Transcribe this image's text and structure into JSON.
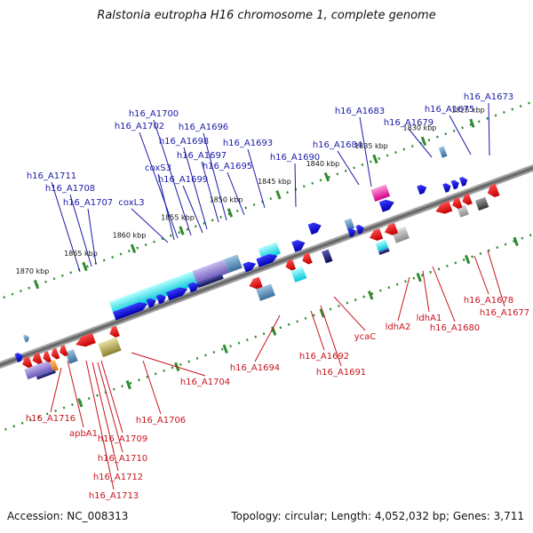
{
  "title": "Ralstonia eutropha H16 chromosome 1, complete genome",
  "footer": {
    "accession": "Accession: NC_008313",
    "topology": "Topology: circular; Length: 4,052,032 bp; Genes: 3,711"
  },
  "ticks": [
    {
      "label": "1825 kbp",
      "kbp": 1825
    },
    {
      "label": "1830 kbp",
      "kbp": 1830
    },
    {
      "label": "1835 kbp",
      "kbp": 1835
    },
    {
      "label": "1840 kbp",
      "kbp": 1840
    },
    {
      "label": "1845 kbp",
      "kbp": 1845
    },
    {
      "label": "1850 kbp",
      "kbp": 1850
    },
    {
      "label": "1855 kbp",
      "kbp": 1855
    },
    {
      "label": "1860 kbp",
      "kbp": 1860
    },
    {
      "label": "1865 kbp",
      "kbp": 1865
    },
    {
      "label": "1870 kbp",
      "kbp": 1870
    }
  ],
  "forward_labels": [
    "h16_A1673",
    "h16_A1675",
    "h16_A1679",
    "h16_A1683",
    "h16_A1684",
    "h16_A1690",
    "h16_A1693",
    "h16_A1695",
    "h16_A1696",
    "h16_A1697",
    "h16_A1698",
    "h16_A1699",
    "h16_A1700",
    "h16_A1702",
    "coxS3",
    "coxL3",
    "h16_A1707",
    "h16_A1708",
    "h16_A1711"
  ],
  "reverse_labels": [
    "h16_A1677",
    "h16_A1678",
    "h16_A1680",
    "ldhA1",
    "ldhA2",
    "ycaC",
    "h16_A1691",
    "h16_A1692",
    "h16_A1694",
    "h16_A1704",
    "h16_A1706",
    "h16_A1709",
    "h16_A1710",
    "h16_A1712",
    "h16_A1713",
    "apbA1",
    "h16_A1716"
  ],
  "colors": {
    "forward": "#1a1aa8",
    "reverse": "#c8141e",
    "backbone": "#808080",
    "ticks": "#2e8b2e"
  }
}
